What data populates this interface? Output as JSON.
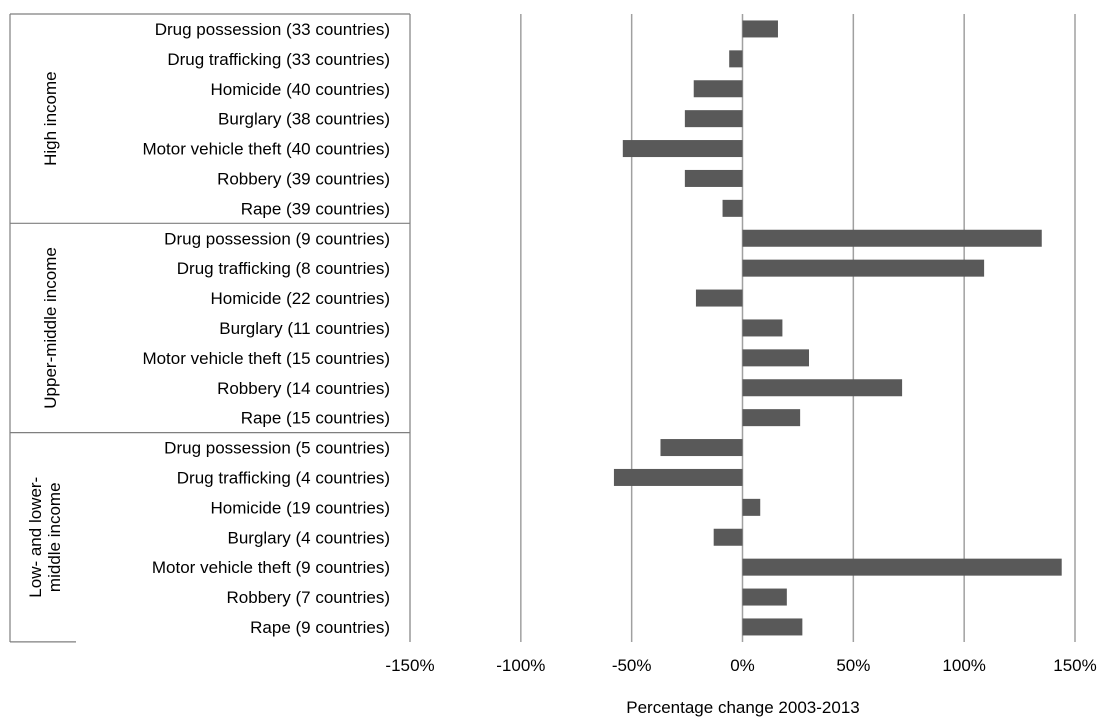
{
  "chart_data": {
    "type": "bar",
    "orientation": "horizontal",
    "title": "",
    "xlabel": "Percentage change 2003-2013",
    "ylabel": "",
    "xlim": [
      -150,
      150
    ],
    "x_ticks": [
      -150,
      -100,
      -50,
      0,
      50,
      100,
      150
    ],
    "x_tick_labels": [
      "-150%",
      "-100%",
      "-50%",
      "0%",
      "50%",
      "100%",
      "150%"
    ],
    "grid": true,
    "legend": "none",
    "bar_color": "#595959",
    "groups": [
      {
        "label": "High income",
        "categories": [
          "Drug possession (33 countries)",
          "Drug trafficking (33 countries)",
          "Homicide (40 countries)",
          "Burglary (38 countries)",
          "Motor vehicle theft (40 countries)",
          "Robbery (39 countries)",
          "Rape (39 countries)"
        ],
        "values": [
          16,
          -6,
          -22,
          -26,
          -54,
          -26,
          -9
        ]
      },
      {
        "label": "Upper-middle income",
        "categories": [
          "Drug possession (9 countries)",
          "Drug trafficking (8 countries)",
          "Homicide (22 countries)",
          "Burglary (11 countries)",
          "Motor vehicle theft (15 countries)",
          "Robbery (14 countries)",
          "Rape (15 countries)"
        ],
        "values": [
          135,
          109,
          -21,
          18,
          30,
          72,
          26
        ]
      },
      {
        "label": "Low- and lower-middle income",
        "label_lines": [
          "Low- and lower-",
          "middle income"
        ],
        "categories": [
          "Drug possession (5 countries)",
          "Drug trafficking (4 countries)",
          "Homicide (19 countries)",
          "Burglary (4 countries)",
          "Motor vehicle theft (9 countries)",
          "Robbery (7 countries)",
          "Rape (9 countries)"
        ],
        "values": [
          -37,
          -58,
          8,
          -13,
          144,
          20,
          27
        ]
      }
    ]
  }
}
